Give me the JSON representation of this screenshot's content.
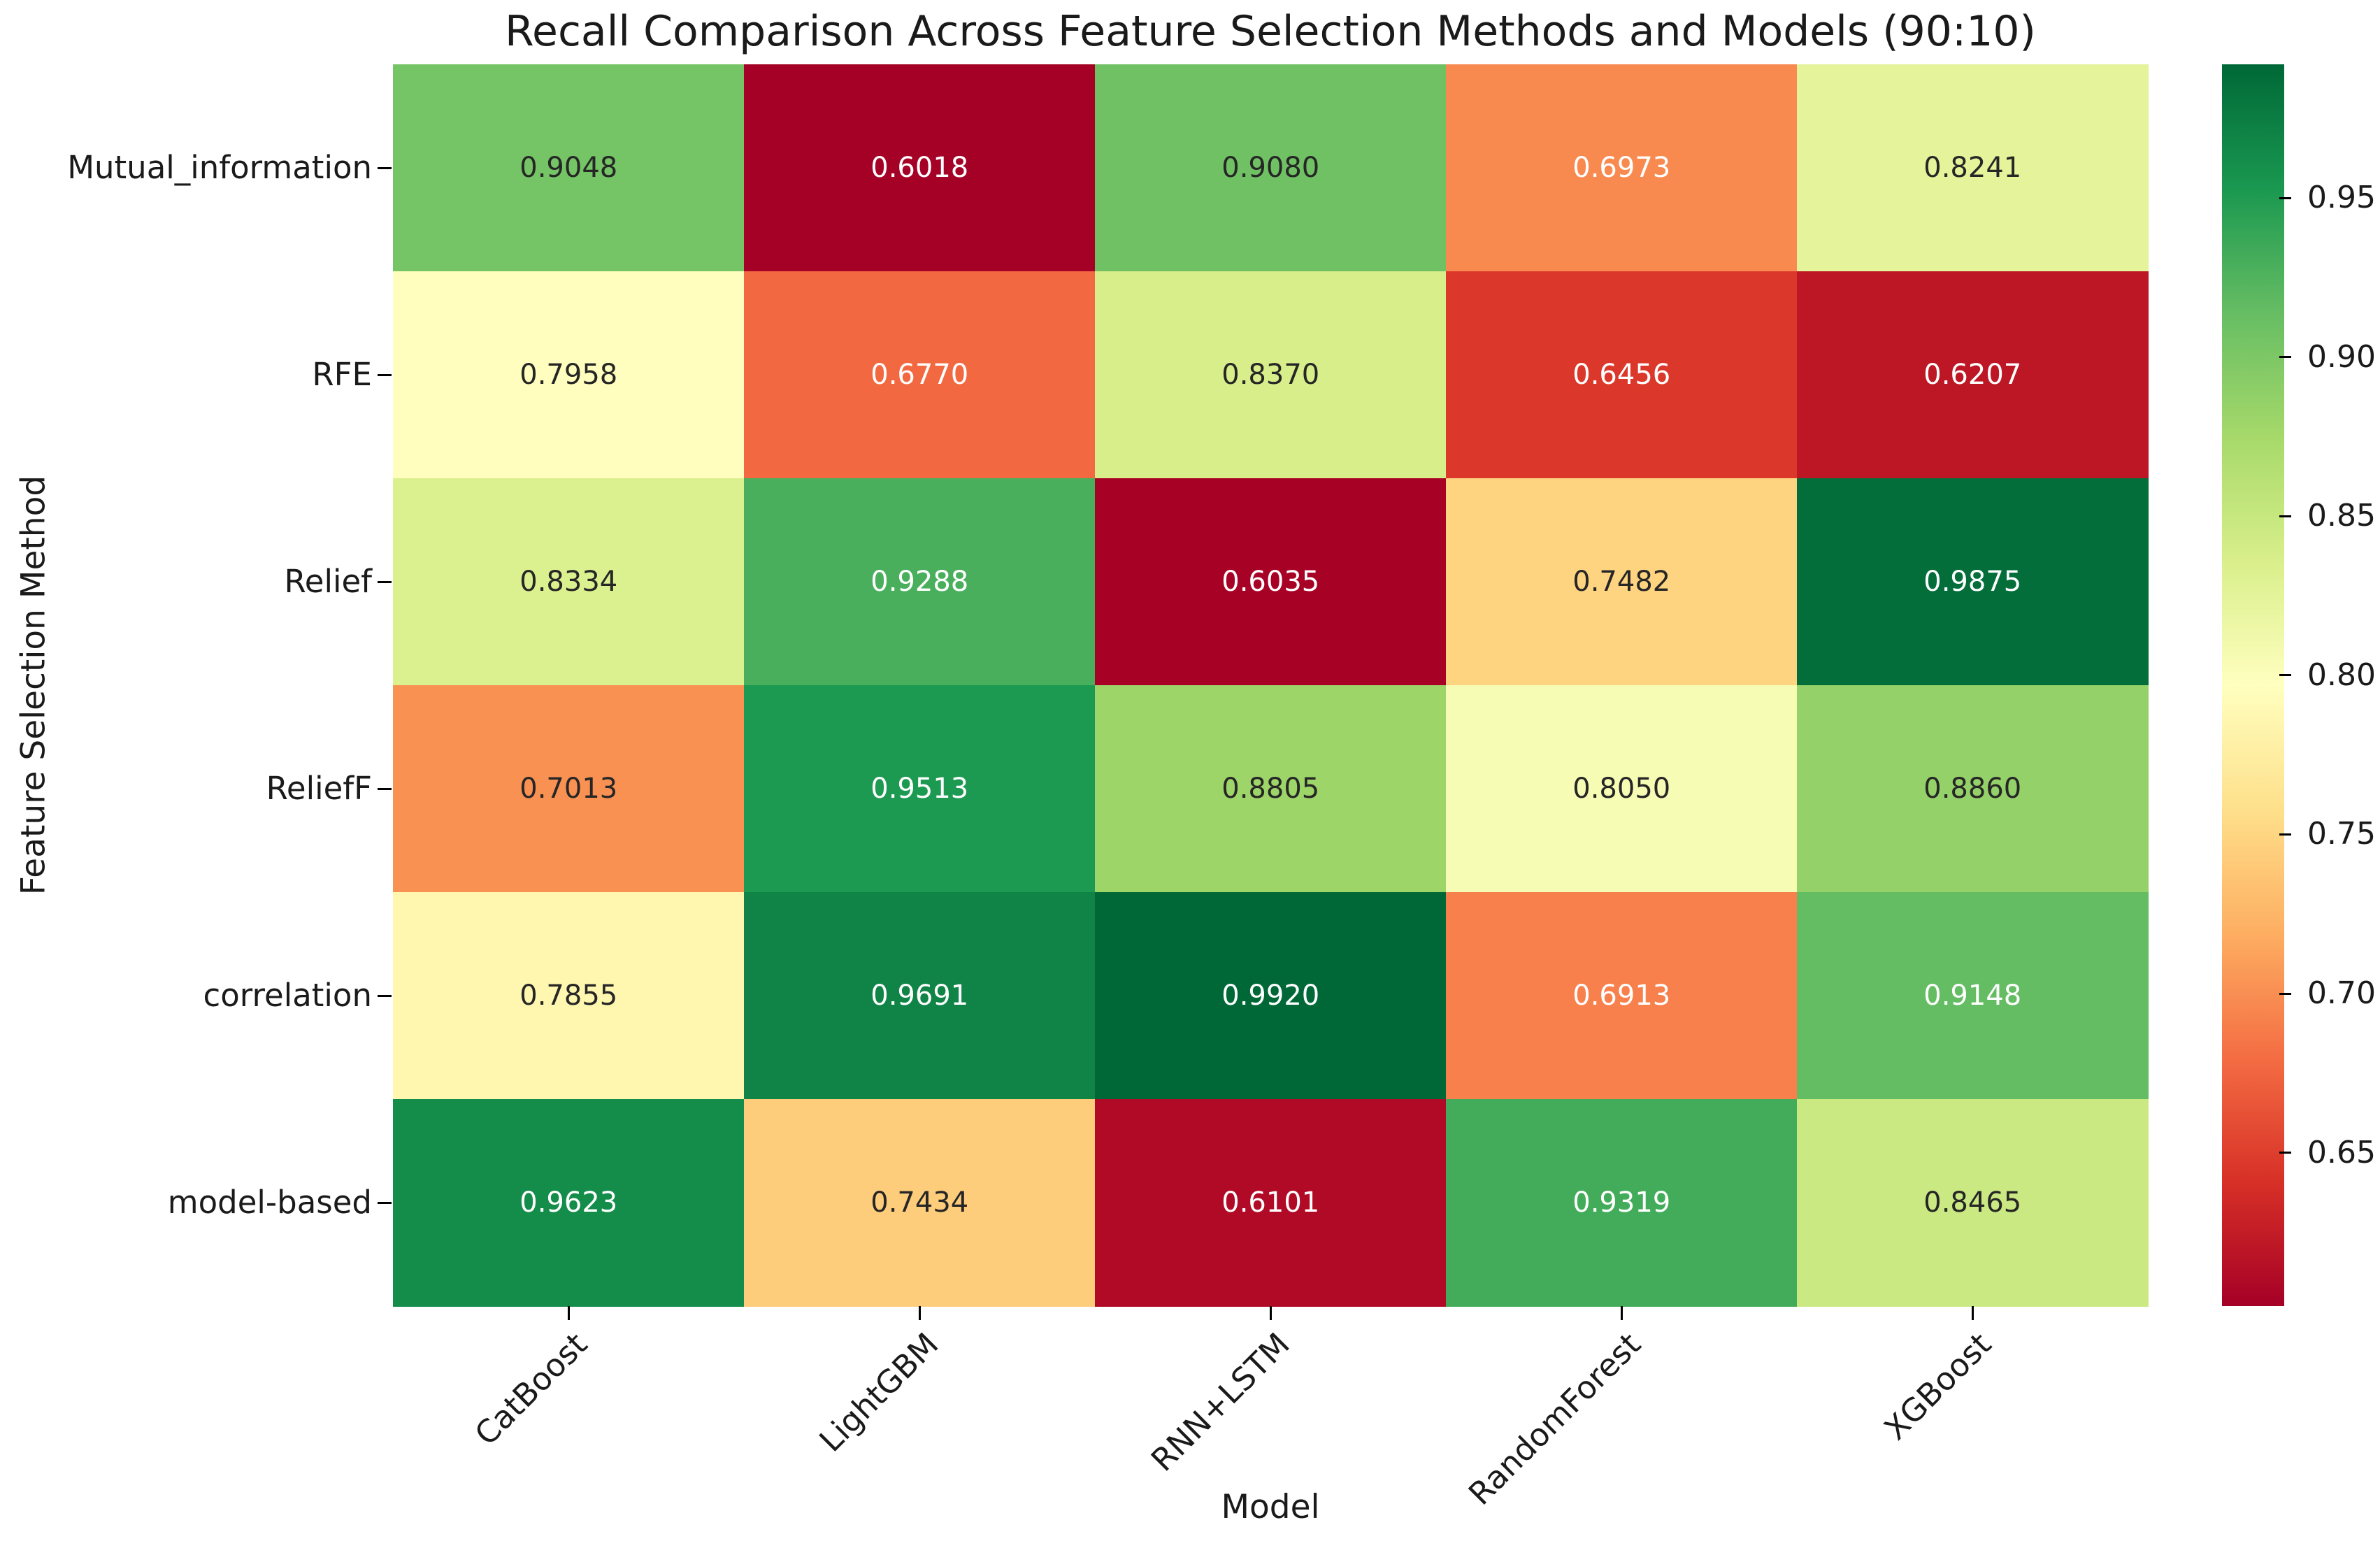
{
  "chart_data": {
    "type": "heatmap",
    "title": "Recall Comparison Across Feature Selection Methods and Models (90:10)",
    "xlabel": "Model",
    "ylabel": "Feature Selection Method",
    "columns": [
      "CatBoost",
      "LightGBM",
      "RNN+LSTM",
      "RandomForest",
      "XGBoost"
    ],
    "rows": [
      "Mutual_information",
      "RFE",
      "Relief",
      "ReliefF",
      "correlation",
      "model-based"
    ],
    "values": [
      [
        0.9048,
        0.6018,
        0.908,
        0.6973,
        0.8241
      ],
      [
        0.7958,
        0.677,
        0.837,
        0.6456,
        0.6207
      ],
      [
        0.8334,
        0.9288,
        0.6035,
        0.7482,
        0.9875
      ],
      [
        0.7013,
        0.9513,
        0.8805,
        0.805,
        0.886
      ],
      [
        0.7855,
        0.9691,
        0.992,
        0.6913,
        0.9148
      ],
      [
        0.9623,
        0.7434,
        0.6101,
        0.9319,
        0.8465
      ]
    ],
    "annotation_decimals": 4,
    "colorbar_tick_labels": [
      "0.95",
      "0.90",
      "0.85",
      "0.80",
      "0.75",
      "0.70",
      "0.65"
    ],
    "colorscale": {
      "name": "RdYlGn",
      "stops": [
        "#a50026",
        "#d73027",
        "#f46d43",
        "#fdae61",
        "#fee08b",
        "#ffffbf",
        "#d9ef8b",
        "#a6d96a",
        "#66bd63",
        "#1a9850",
        "#006837"
      ]
    },
    "annotation_dark_color": "#262626",
    "annotation_light_color": "#ffffff",
    "legend_position": "right",
    "grid": false,
    "xlim_note": "colorbar range equals data min/max"
  }
}
